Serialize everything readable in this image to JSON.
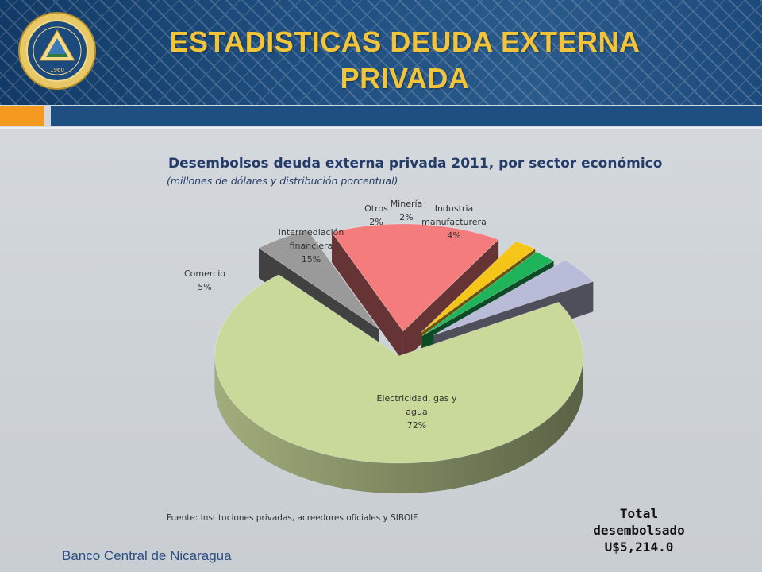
{
  "header": {
    "title_line1": "ESTADISTICAS DEUDA EXTERNA",
    "title_line2": "PRIVADA",
    "seal_year": "1960"
  },
  "chart_data": {
    "type": "pie",
    "title": "Desembolsos deuda externa privada 2011, por sector económico",
    "subtitle": "(millones de dólares y distribución porcentual)",
    "slices": [
      {
        "name": "Electricidad, gas y agua",
        "label_lines": [
          "Electricidad, gas y",
          "agua"
        ],
        "value": 72,
        "value_label": "72%",
        "color": "#c9d99a"
      },
      {
        "name": "Comercio",
        "label_lines": [
          "Comercio"
        ],
        "value": 5,
        "value_label": "5%",
        "color": "#9a9a9a"
      },
      {
        "name": "Intermediación financiera",
        "label_lines": [
          "Intermediación",
          "financiera"
        ],
        "value": 15,
        "value_label": "15%",
        "color": "#f47c7c"
      },
      {
        "name": "Otros",
        "label_lines": [
          "Otros"
        ],
        "value": 2,
        "value_label": "2%",
        "color": "#f5c518"
      },
      {
        "name": "Minería",
        "label_lines": [
          "Minería"
        ],
        "value": 2,
        "value_label": "2%",
        "color": "#1fb35a"
      },
      {
        "name": "Industria manufacturera",
        "label_lines": [
          "Industria",
          "manufacturera"
        ],
        "value": 4,
        "value_label": "4%",
        "color": "#b9bcd9"
      }
    ]
  },
  "source": "Fuente: Instituciones privadas, acreedores oficiales y SIBOIF",
  "total": {
    "line1": "Total",
    "line2": "desembolsado",
    "line3": "U$5,214.0"
  },
  "footer": "Banco Central de Nicaragua"
}
